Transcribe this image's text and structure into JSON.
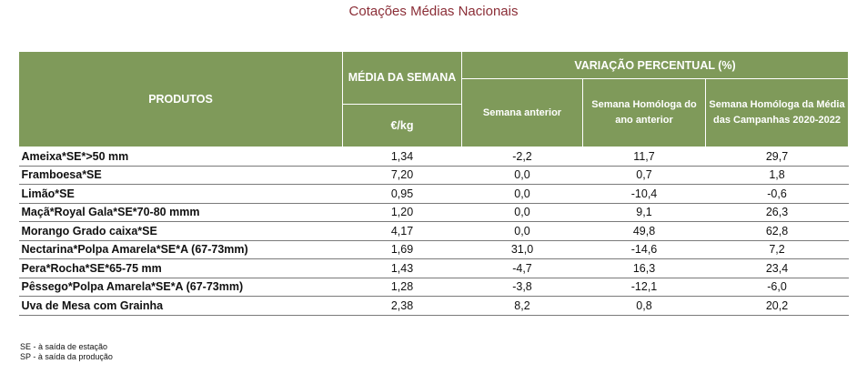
{
  "title": "Cotações Médias Nacionais",
  "table": {
    "headers": {
      "produtos": "PRODUTOS",
      "media": "MÉDIA DA SEMANA",
      "unit": "€/kg",
      "variacao": "VARIAÇÃO PERCENTUAL (%)",
      "sub": [
        "Semana anterior",
        "Semana Homóloga do ano anterior",
        "Semana Homóloga da Média das Campanhas 2020-2022"
      ]
    },
    "rows": [
      [
        "Ameixa*SE*>50 mm",
        "1,34",
        "-2,2",
        "11,7",
        "29,7"
      ],
      [
        "Framboesa*SE",
        "7,20",
        "0,0",
        "0,7",
        "1,8"
      ],
      [
        "Limão*SE",
        "0,95",
        "0,0",
        "-10,4",
        "-0,6"
      ],
      [
        "Maçã*Royal Gala*SE*70-80 mmm",
        "1,20",
        "0,0",
        "9,1",
        "26,3"
      ],
      [
        "Morango Grado caixa*SE",
        "4,17",
        "0,0",
        "49,8",
        "62,8"
      ],
      [
        "Nectarina*Polpa Amarela*SE*A (67-73mm)",
        "1,69",
        "31,0",
        "-14,6",
        "7,2"
      ],
      [
        "Pera*Rocha*SE*65-75 mm",
        "1,43",
        "-4,7",
        "16,3",
        "23,4"
      ],
      [
        "Pêssego*Polpa Amarela*SE*A (67-73mm)",
        "1,28",
        "-3,8",
        "-12,1",
        "-6,0"
      ],
      [
        "Uva de Mesa com Grainha",
        "2,38",
        "8,2",
        "0,8",
        "20,2"
      ]
    ]
  },
  "notes": [
    "SE - à saída de estação",
    "SP - à saída da produção"
  ],
  "colors": {
    "header_bg": "#7f9a5a",
    "title": "#8b2e37"
  }
}
